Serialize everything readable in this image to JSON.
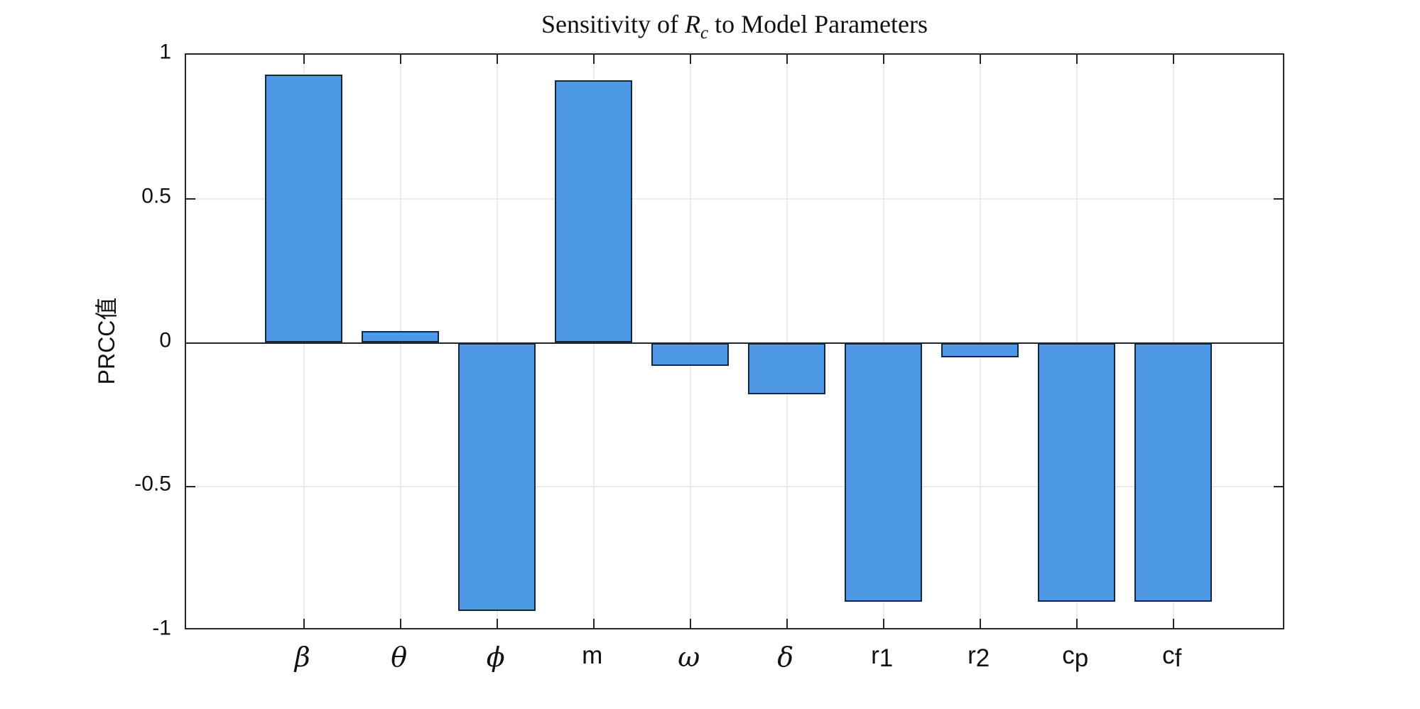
{
  "title": {
    "prefix": "Sensitivity of ",
    "symbol": "R",
    "symbol_sub": "c",
    "suffix": " to Model Parameters"
  },
  "ylabel": "PRCC值",
  "colors": {
    "bar_fill": "#4d99e5",
    "bar_edge": "#132743",
    "axis": "#262626",
    "grid": "#ebebeb",
    "background": "#ffffff"
  },
  "chart_data": {
    "type": "bar",
    "title": "Sensitivity of R_c to Model Parameters",
    "xlabel": "",
    "ylabel": "PRCC值",
    "categories": [
      "β",
      "θ",
      "ϕ",
      "m",
      "ω",
      "δ",
      "r_1",
      "r_2",
      "c_p",
      "c_f"
    ],
    "category_labels": [
      {
        "base": "β",
        "sub": "",
        "greek": true
      },
      {
        "base": "θ",
        "sub": "",
        "greek": true
      },
      {
        "base": "ϕ",
        "sub": "",
        "greek": true
      },
      {
        "base": "m",
        "sub": "",
        "greek": false
      },
      {
        "base": "ω",
        "sub": "",
        "greek": true
      },
      {
        "base": "δ",
        "sub": "",
        "greek": true
      },
      {
        "base": "r",
        "sub": "1",
        "greek": false
      },
      {
        "base": "r",
        "sub": "2",
        "greek": false
      },
      {
        "base": "c",
        "sub": "p",
        "greek": false
      },
      {
        "base": "c",
        "sub": "f",
        "greek": false
      }
    ],
    "values": [
      0.93,
      0.04,
      -0.93,
      0.91,
      -0.08,
      -0.18,
      -0.9,
      -0.05,
      -0.9,
      -0.9
    ],
    "ylim": [
      -1,
      1
    ],
    "yticks": [
      {
        "value": 1,
        "label": "1"
      },
      {
        "value": 0.5,
        "label": "0.5"
      },
      {
        "value": 0,
        "label": "0"
      },
      {
        "value": -0.5,
        "label": "-0.5"
      },
      {
        "value": -1,
        "label": "-1"
      }
    ],
    "grid": true,
    "legend": false
  }
}
